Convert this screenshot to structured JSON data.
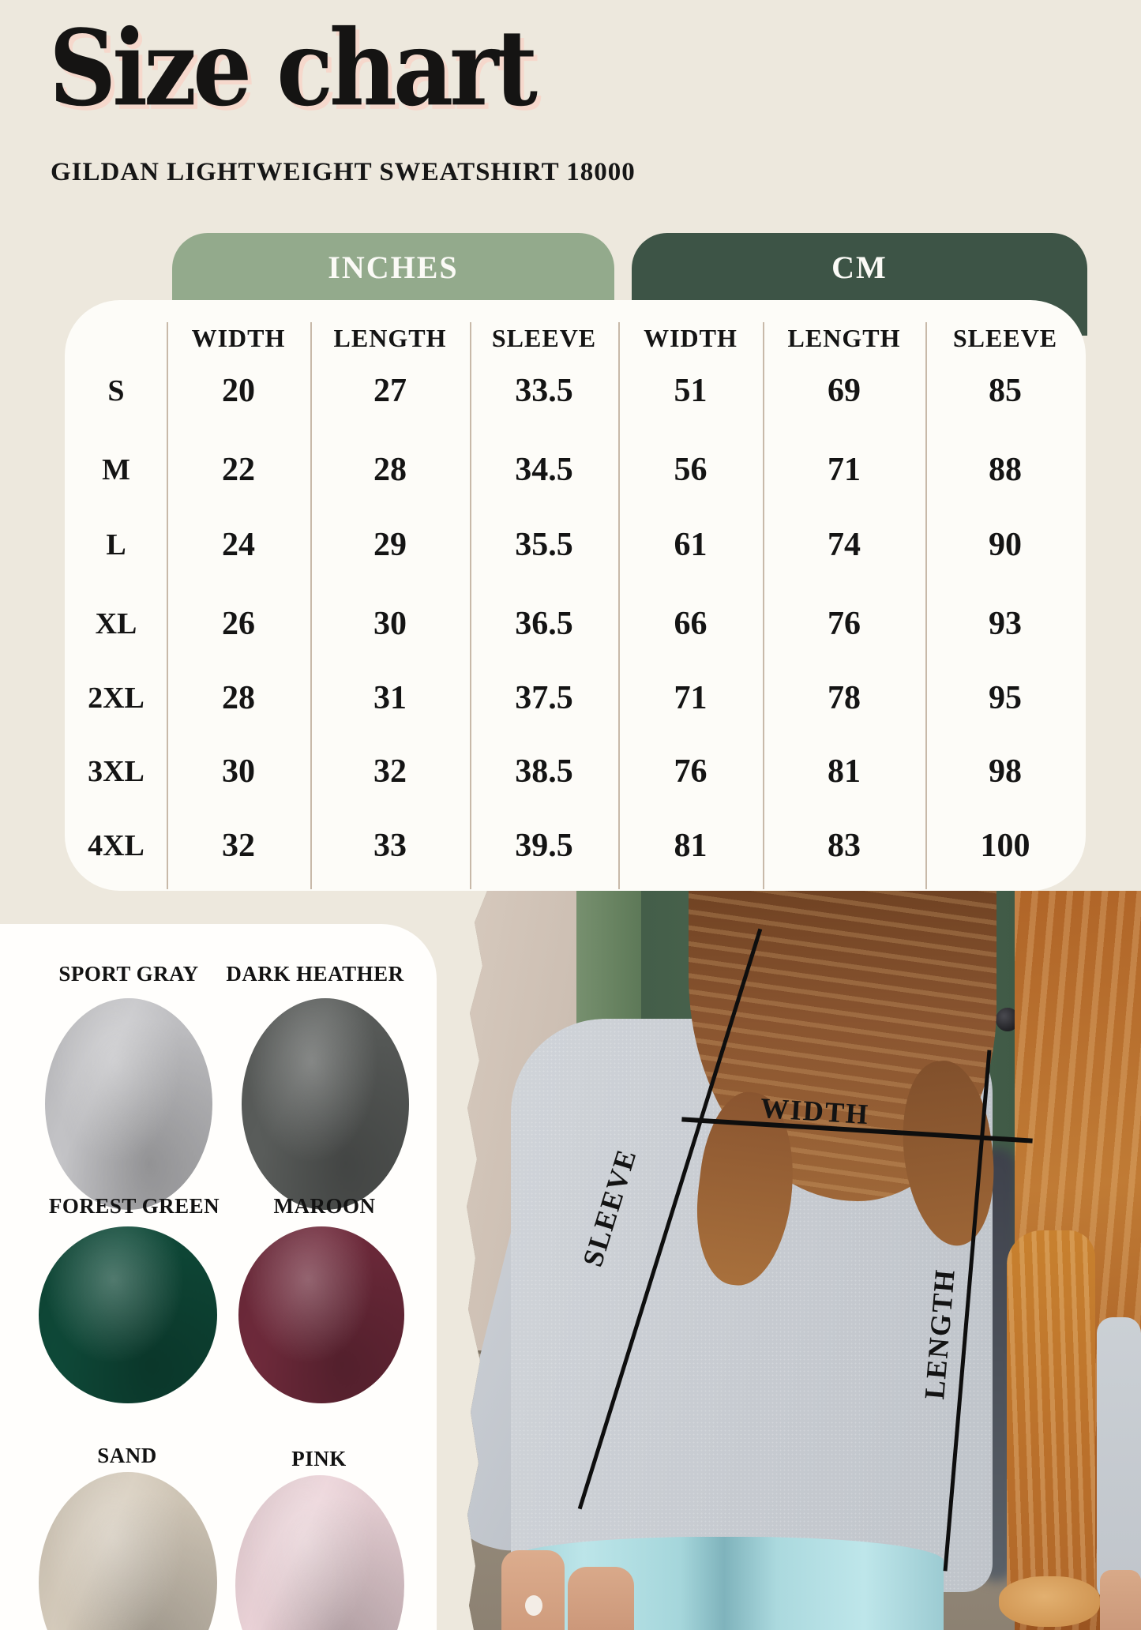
{
  "page": {
    "title": "Size chart",
    "subtitle": "GILDAN LIGHTWEIGHT SWEATSHIRT 18000",
    "background": "#EDE8DD",
    "title_shadow": "#F6D8CC"
  },
  "unit_tabs": [
    {
      "label": "INCHES",
      "color": "#93AA8C"
    },
    {
      "label": "CM",
      "color": "#3D5446"
    }
  ],
  "size_table": {
    "columns": [
      "WIDTH",
      "LENGTH",
      "SLEEVE",
      "WIDTH",
      "LENGTH",
      "SLEEVE"
    ],
    "rows": [
      {
        "size": "S",
        "in_width": "20",
        "in_length": "27",
        "in_sleeve": "33.5",
        "cm_width": "51",
        "cm_length": "69",
        "cm_sleeve": "85"
      },
      {
        "size": "M",
        "in_width": "22",
        "in_length": "28",
        "in_sleeve": "34.5",
        "cm_width": "56",
        "cm_length": "71",
        "cm_sleeve": "88"
      },
      {
        "size": "L",
        "in_width": "24",
        "in_length": "29",
        "in_sleeve": "35.5",
        "cm_width": "61",
        "cm_length": "74",
        "cm_sleeve": "90"
      },
      {
        "size": "XL",
        "in_width": "26",
        "in_length": "30",
        "in_sleeve": "36.5",
        "cm_width": "66",
        "cm_length": "76",
        "cm_sleeve": "93"
      },
      {
        "size": "2XL",
        "in_width": "28",
        "in_length": "31",
        "in_sleeve": "37.5",
        "cm_width": "71",
        "cm_length": "78",
        "cm_sleeve": "95"
      },
      {
        "size": "3XL",
        "in_width": "30",
        "in_length": "32",
        "in_sleeve": "38.5",
        "cm_width": "76",
        "cm_length": "81",
        "cm_sleeve": "98"
      },
      {
        "size": "4XL",
        "in_width": "32",
        "in_length": "33",
        "in_sleeve": "39.5",
        "cm_width": "81",
        "cm_length": "83",
        "cm_sleeve": "100"
      }
    ]
  },
  "color_swatches": [
    {
      "label": "SPORT GRAY",
      "hex": "#C6C6C9"
    },
    {
      "label": "DARK HEATHER",
      "hex": "#5B5E5C"
    },
    {
      "label": "FOREST GREEN",
      "hex": "#0F4A39"
    },
    {
      "label": "MAROON",
      "hex": "#702B3C"
    },
    {
      "label": "SAND",
      "hex": "#D7CDBD"
    },
    {
      "label": "PINK",
      "hex": "#ECD4D9"
    }
  ],
  "photo": {
    "labels": {
      "width": "WIDTH",
      "sleeve": "SLEEVE",
      "length": "LENGTH"
    }
  }
}
